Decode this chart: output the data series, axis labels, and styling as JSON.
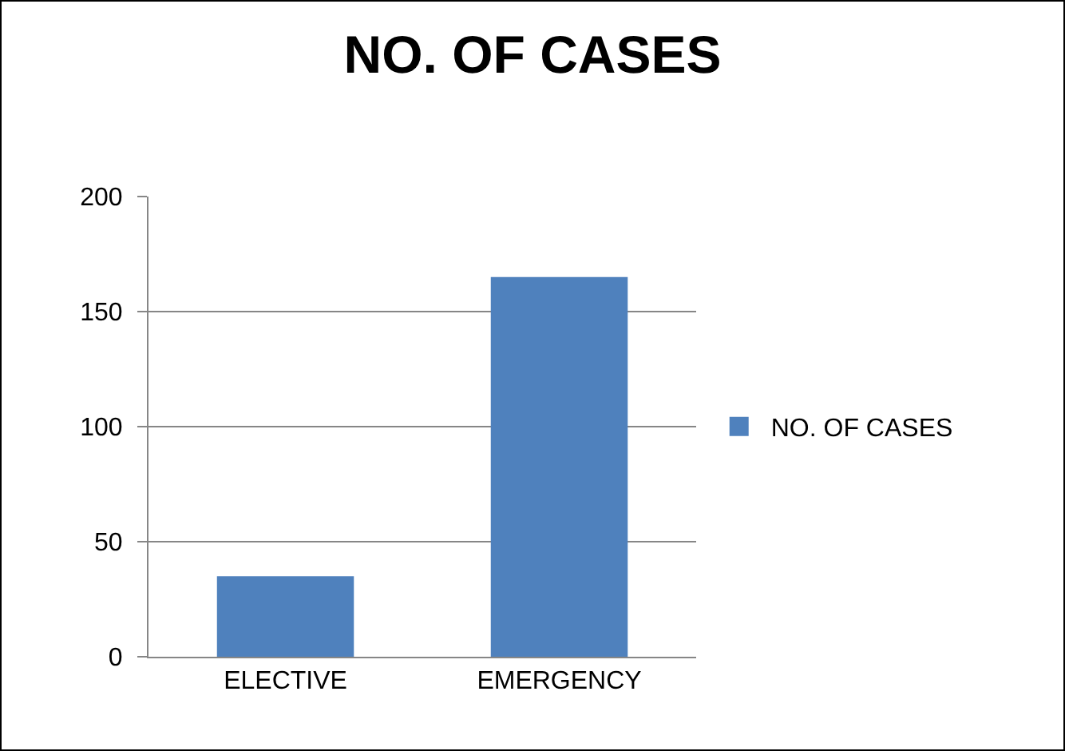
{
  "chart_data": {
    "type": "bar",
    "title": "NO. OF CASES",
    "categories": [
      "ELECTIVE",
      "EMERGENCY"
    ],
    "series": [
      {
        "name": "NO. OF CASES",
        "color": "#4f81bd",
        "values": [
          35,
          165
        ]
      }
    ],
    "ylim": [
      0,
      200
    ],
    "yticks": [
      0,
      50,
      100,
      150,
      200
    ],
    "grid": "y",
    "legend": "right"
  }
}
